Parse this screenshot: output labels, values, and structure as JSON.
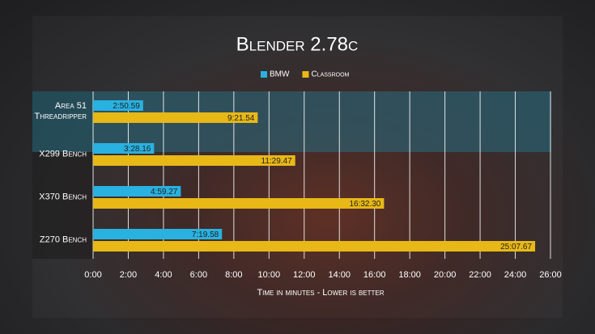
{
  "chart_data": {
    "type": "bar",
    "orientation": "horizontal",
    "title": "Blender 2.78c",
    "x_label": "Time in minutes - Lower is better",
    "categories": [
      "Area 51 Threadripper",
      "X299 Bench",
      "X370 Bench",
      "Z270 Bench"
    ],
    "series": [
      {
        "name": "BMW",
        "color": "#29b1e0",
        "values": [
          2.8432,
          3.4693,
          4.9878,
          7.3263
        ],
        "value_labels": [
          "2:50.59",
          "3:28.16",
          "4:59.27",
          "7:19.58"
        ]
      },
      {
        "name": "Classroom",
        "color": "#e8b817",
        "values": [
          9.359,
          11.4912,
          16.5383,
          25.1278
        ],
        "value_labels": [
          "9:21.54",
          "11:29.47",
          "16:32.30",
          "25:07.67"
        ]
      }
    ],
    "xlim": [
      0,
      26
    ],
    "xticks": [
      {
        "value": 0,
        "label": "0:00"
      },
      {
        "value": 2,
        "label": "2:00"
      },
      {
        "value": 4,
        "label": "4:00"
      },
      {
        "value": 6,
        "label": "6:00"
      },
      {
        "value": 8,
        "label": "8:00"
      },
      {
        "value": 10,
        "label": "10:00"
      },
      {
        "value": 12,
        "label": "12:00"
      },
      {
        "value": 14,
        "label": "14:00"
      },
      {
        "value": 16,
        "label": "16:00"
      },
      {
        "value": 18,
        "label": "18:00"
      },
      {
        "value": 20,
        "label": "20:00"
      },
      {
        "value": 22,
        "label": "22:00"
      },
      {
        "value": 24,
        "label": "24:00"
      },
      {
        "value": 26,
        "label": "26:00"
      }
    ],
    "grid": true
  }
}
